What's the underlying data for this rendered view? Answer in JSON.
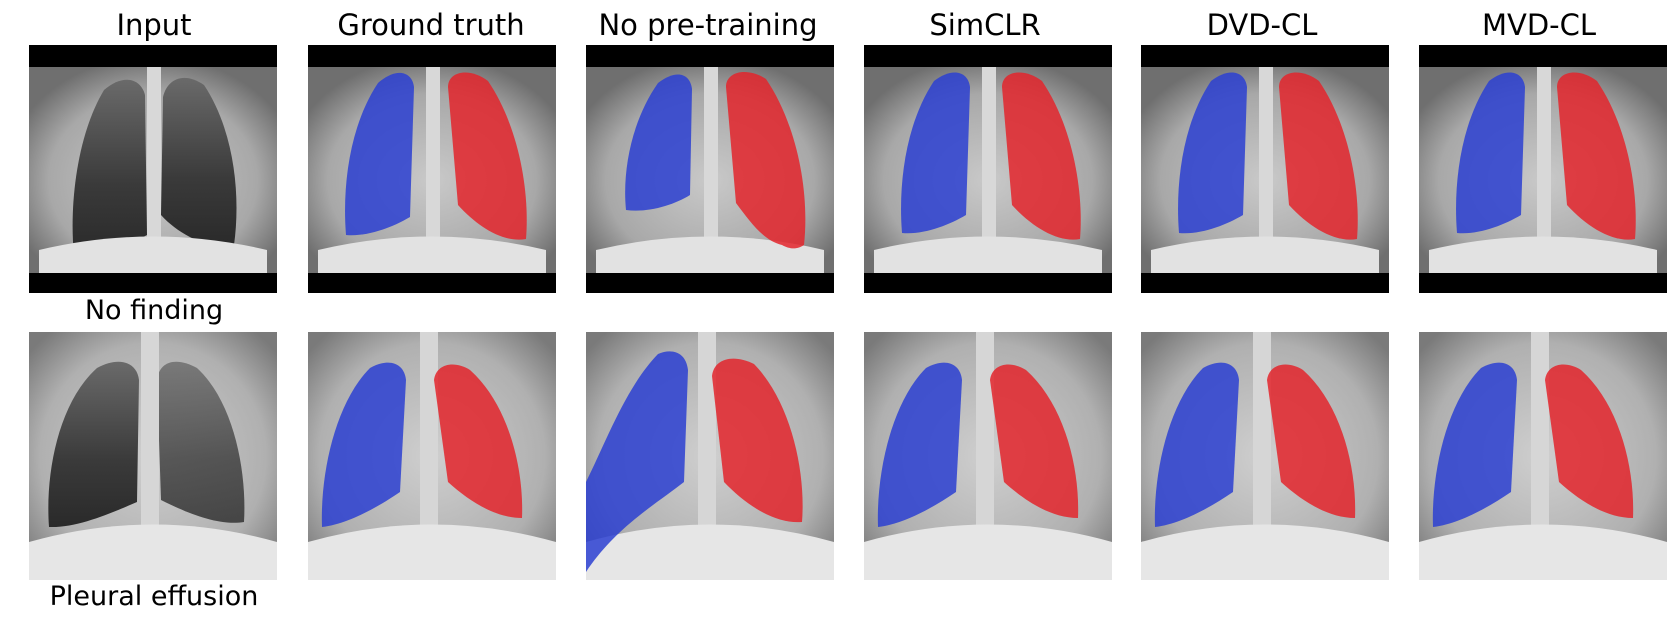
{
  "columns": [
    "Input",
    "Ground truth",
    "No pre-training",
    "SimCLR",
    "DVD-CL",
    "MVD-CL"
  ],
  "rows": [
    {
      "label": "No finding"
    },
    {
      "label": "Pleural effusion"
    }
  ],
  "colors": {
    "right_lung_overlay": "#2b3fd1",
    "left_lung_overlay": "#e3242b",
    "background": "#000000"
  }
}
